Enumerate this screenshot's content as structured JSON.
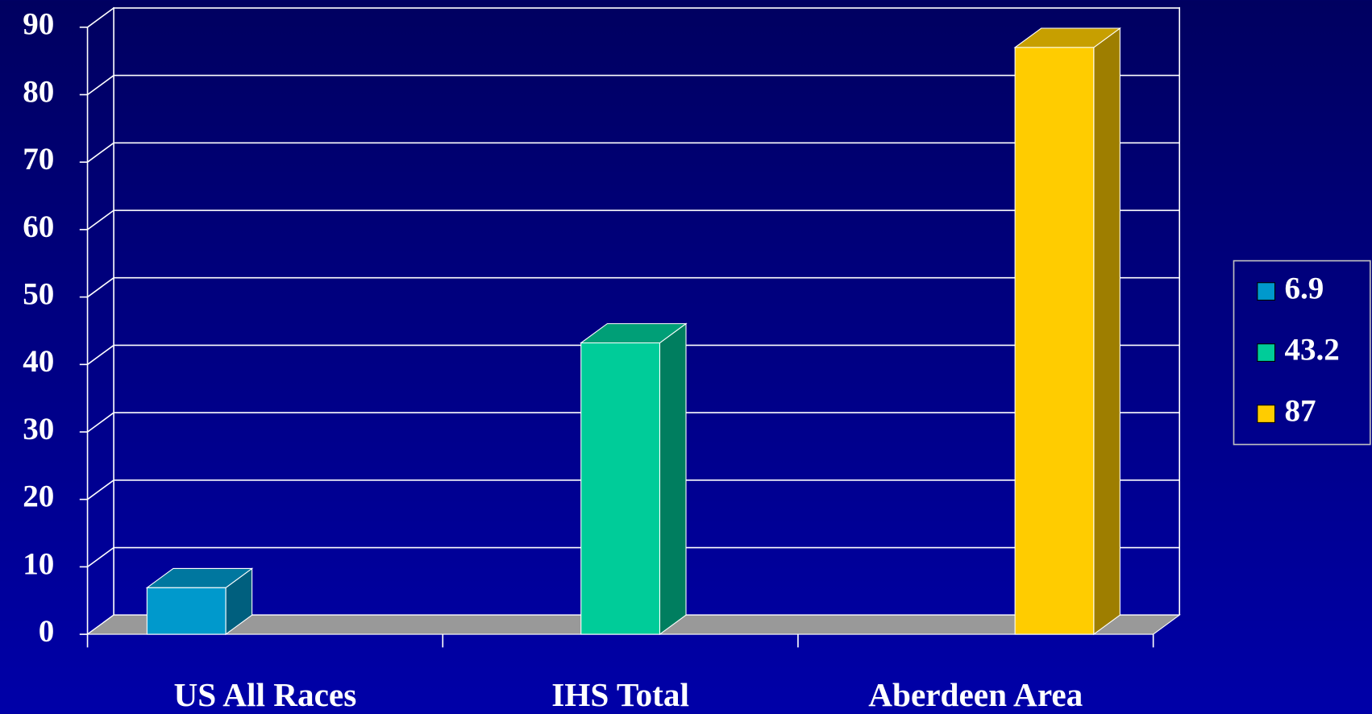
{
  "chart_data": {
    "type": "bar3d",
    "categories": [
      "US All Races",
      "IHS Total",
      "Aberdeen Area"
    ],
    "series": [
      {
        "name": "6.9",
        "color": "#0099cc",
        "values": [
          6.9,
          null,
          null
        ]
      },
      {
        "name": "43.2",
        "color": "#00cc99",
        "values": [
          null,
          43.2,
          null
        ]
      },
      {
        "name": "87",
        "color": "#ffcc00",
        "values": [
          null,
          null,
          87
        ]
      }
    ],
    "ylim": [
      0,
      90
    ],
    "yticks": [
      0,
      10,
      20,
      30,
      40,
      50,
      60,
      70,
      80,
      90
    ],
    "grid": true,
    "legend": "right"
  }
}
